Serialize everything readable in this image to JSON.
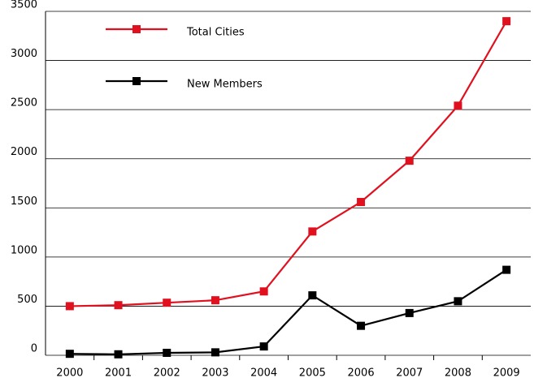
{
  "chart_data": {
    "type": "line",
    "categories": [
      "2000",
      "2001",
      "2002",
      "2003",
      "2004",
      "2005",
      "2006",
      "2007",
      "2008",
      "2009"
    ],
    "series": [
      {
        "name": "Total Cities",
        "color": "#e0101e",
        "values": [
          500,
          510,
          535,
          560,
          650,
          1260,
          1560,
          1980,
          2540,
          3400
        ]
      },
      {
        "name": "New Members",
        "color": "#000000",
        "values": [
          15,
          10,
          25,
          30,
          90,
          610,
          300,
          430,
          550,
          870
        ]
      }
    ],
    "ylim": [
      0,
      3500
    ],
    "yticks": [
      0,
      500,
      1000,
      1500,
      2000,
      2500,
      3000,
      3500
    ],
    "grid": true,
    "legend": "upper left"
  }
}
